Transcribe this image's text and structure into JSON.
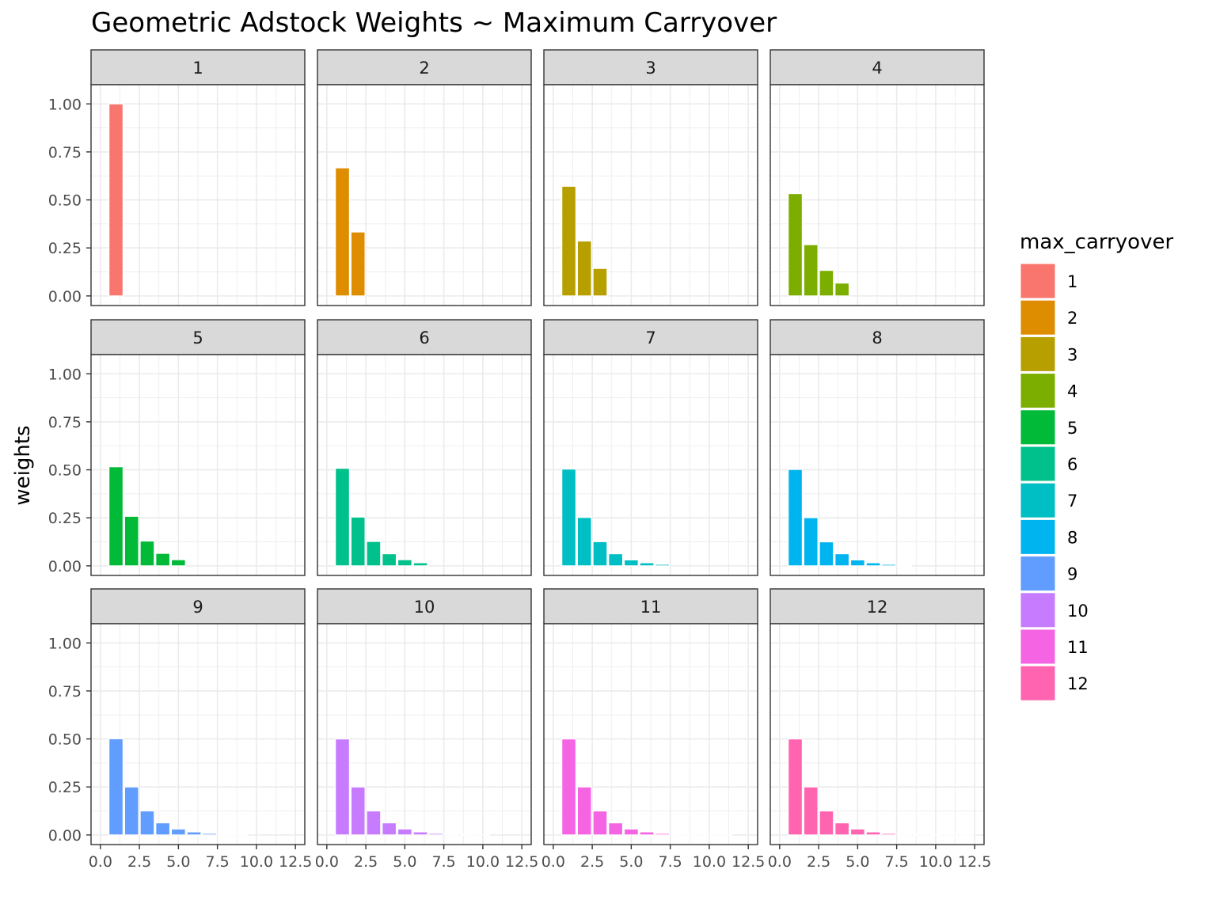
{
  "chart_data": {
    "type": "bar",
    "title": "Geometric Adstock Weights ~ Maximum Carryover",
    "xlabel": "",
    "ylabel": "weights",
    "ylim": [
      0,
      1.0
    ],
    "xlim": [
      0,
      12.5
    ],
    "x_ticks": [
      "0.0",
      "2.5",
      "5.0",
      "7.5",
      "10.0",
      "12.5"
    ],
    "y_ticks": [
      "0.00",
      "0.25",
      "0.50",
      "0.75",
      "1.00"
    ],
    "grid": true,
    "legend": {
      "title": "max_carryover",
      "placement": "right",
      "entries": [
        "1",
        "2",
        "3",
        "4",
        "5",
        "6",
        "7",
        "8",
        "9",
        "10",
        "11",
        "12"
      ]
    },
    "facet_layout": "3 rows x 4 columns",
    "series": [
      {
        "name": "1",
        "color": "#F8766D",
        "x": [
          1
        ],
        "values": [
          1.0
        ]
      },
      {
        "name": "2",
        "color": "#DE8C00",
        "x": [
          1,
          2
        ],
        "values": [
          0.667,
          0.333
        ]
      },
      {
        "name": "3",
        "color": "#B79F00",
        "x": [
          1,
          2,
          3
        ],
        "values": [
          0.571,
          0.286,
          0.143
        ]
      },
      {
        "name": "4",
        "color": "#7CAE00",
        "x": [
          1,
          2,
          3,
          4
        ],
        "values": [
          0.533,
          0.267,
          0.133,
          0.067
        ]
      },
      {
        "name": "5",
        "color": "#00BA38",
        "x": [
          1,
          2,
          3,
          4,
          5
        ],
        "values": [
          0.516,
          0.258,
          0.129,
          0.065,
          0.032
        ]
      },
      {
        "name": "6",
        "color": "#00C08B",
        "x": [
          1,
          2,
          3,
          4,
          5,
          6
        ],
        "values": [
          0.508,
          0.254,
          0.127,
          0.063,
          0.032,
          0.016
        ]
      },
      {
        "name": "7",
        "color": "#00BFC4",
        "x": [
          1,
          2,
          3,
          4,
          5,
          6,
          7
        ],
        "values": [
          0.504,
          0.252,
          0.126,
          0.063,
          0.031,
          0.016,
          0.008
        ]
      },
      {
        "name": "8",
        "color": "#00B4F0",
        "x": [
          1,
          2,
          3,
          4,
          5,
          6,
          7,
          8
        ],
        "values": [
          0.502,
          0.251,
          0.125,
          0.063,
          0.031,
          0.016,
          0.008,
          0.004
        ]
      },
      {
        "name": "9",
        "color": "#619CFF",
        "x": [
          1,
          2,
          3,
          4,
          5,
          6,
          7,
          8,
          9
        ],
        "values": [
          0.501,
          0.25,
          0.125,
          0.063,
          0.031,
          0.016,
          0.008,
          0.004,
          0.002
        ]
      },
      {
        "name": "10",
        "color": "#C77CFF",
        "x": [
          1,
          2,
          3,
          4,
          5,
          6,
          7,
          8,
          9,
          10
        ],
        "values": [
          0.5,
          0.25,
          0.125,
          0.063,
          0.031,
          0.016,
          0.008,
          0.004,
          0.002,
          0.001
        ]
      },
      {
        "name": "11",
        "color": "#F564E3",
        "x": [
          1,
          2,
          3,
          4,
          5,
          6,
          7,
          8,
          9,
          10,
          11
        ],
        "values": [
          0.5,
          0.25,
          0.125,
          0.063,
          0.031,
          0.016,
          0.008,
          0.004,
          0.002,
          0.001,
          0.0005
        ]
      },
      {
        "name": "12",
        "color": "#FF64B0",
        "x": [
          1,
          2,
          3,
          4,
          5,
          6,
          7,
          8,
          9,
          10,
          11,
          12
        ],
        "values": [
          0.5,
          0.25,
          0.125,
          0.063,
          0.031,
          0.016,
          0.008,
          0.004,
          0.002,
          0.001,
          0.0005,
          0.0002
        ]
      }
    ]
  }
}
